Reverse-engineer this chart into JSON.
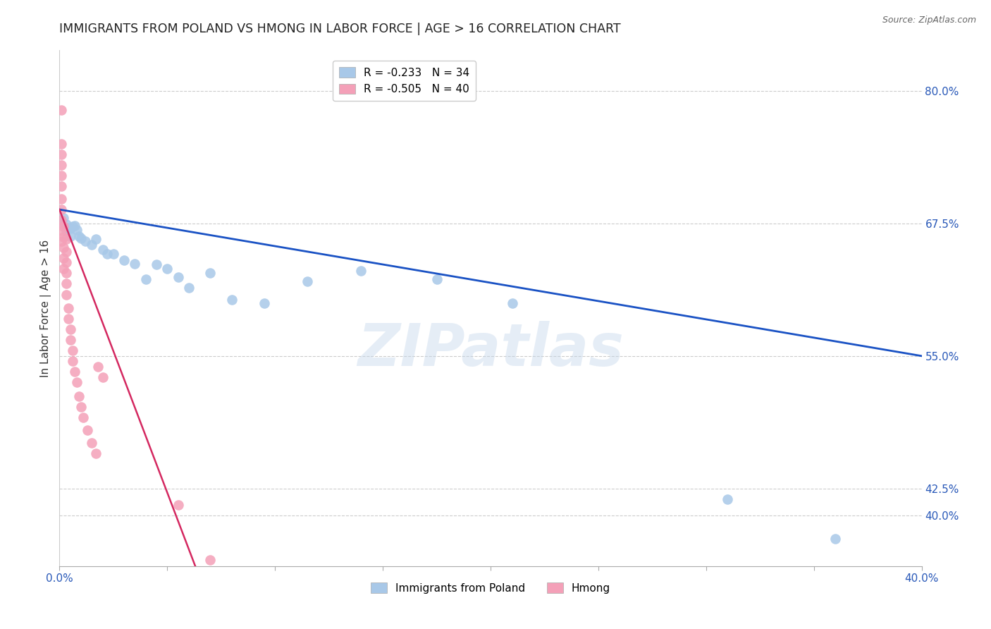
{
  "title": "IMMIGRANTS FROM POLAND VS HMONG IN LABOR FORCE | AGE > 16 CORRELATION CHART",
  "source": "Source: ZipAtlas.com",
  "ylabel": "In Labor Force | Age > 16",
  "legend_labels": [
    "Immigrants from Poland",
    "Hmong"
  ],
  "poland_R": -0.233,
  "poland_N": 34,
  "hmong_R": -0.505,
  "hmong_N": 40,
  "poland_color": "#a8c8e8",
  "hmong_color": "#f4a0b8",
  "poland_line_color": "#1a52c4",
  "hmong_line_color": "#d42860",
  "poland_scatter_x": [
    0.001,
    0.002,
    0.003,
    0.003,
    0.004,
    0.005,
    0.005,
    0.006,
    0.007,
    0.008,
    0.009,
    0.01,
    0.012,
    0.015,
    0.017,
    0.02,
    0.022,
    0.025,
    0.03,
    0.035,
    0.04,
    0.045,
    0.05,
    0.055,
    0.06,
    0.07,
    0.08,
    0.095,
    0.115,
    0.14,
    0.175,
    0.21,
    0.31,
    0.36
  ],
  "poland_scatter_y": [
    0.675,
    0.68,
    0.674,
    0.668,
    0.671,
    0.663,
    0.67,
    0.672,
    0.673,
    0.669,
    0.663,
    0.661,
    0.658,
    0.655,
    0.66,
    0.65,
    0.646,
    0.646,
    0.64,
    0.637,
    0.622,
    0.636,
    0.632,
    0.624,
    0.614,
    0.628,
    0.603,
    0.6,
    0.62,
    0.63,
    0.622,
    0.6,
    0.415,
    0.378
  ],
  "hmong_scatter_x": [
    0.001,
    0.001,
    0.001,
    0.001,
    0.001,
    0.001,
    0.001,
    0.001,
    0.001,
    0.001,
    0.001,
    0.002,
    0.002,
    0.002,
    0.002,
    0.002,
    0.003,
    0.003,
    0.003,
    0.003,
    0.003,
    0.003,
    0.004,
    0.004,
    0.005,
    0.005,
    0.006,
    0.006,
    0.007,
    0.008,
    0.009,
    0.01,
    0.011,
    0.013,
    0.015,
    0.017,
    0.018,
    0.02,
    0.055,
    0.07
  ],
  "hmong_scatter_y": [
    0.782,
    0.75,
    0.74,
    0.73,
    0.72,
    0.71,
    0.698,
    0.688,
    0.678,
    0.668,
    0.658,
    0.672,
    0.662,
    0.652,
    0.642,
    0.632,
    0.66,
    0.648,
    0.638,
    0.628,
    0.618,
    0.608,
    0.595,
    0.585,
    0.575,
    0.565,
    0.555,
    0.545,
    0.535,
    0.525,
    0.512,
    0.502,
    0.492,
    0.48,
    0.468,
    0.458,
    0.54,
    0.53,
    0.41,
    0.358
  ],
  "xlim": [
    0.0,
    0.4
  ],
  "ylim": [
    0.352,
    0.838
  ],
  "xtick_vals": [
    0.0,
    0.05,
    0.1,
    0.15,
    0.2,
    0.25,
    0.3,
    0.35,
    0.4
  ],
  "xtick_labels_show": [
    true,
    false,
    false,
    false,
    false,
    false,
    false,
    false,
    true
  ],
  "ytick_right_vals": [
    0.4,
    0.425,
    0.55,
    0.675,
    0.8
  ],
  "ytick_right_labels": [
    "40.0%",
    "42.5%",
    "55.0%",
    "67.5%",
    "80.0%"
  ],
  "poland_line_x0": 0.0,
  "poland_line_x1": 0.4,
  "poland_line_y0": 0.688,
  "poland_line_y1": 0.55,
  "hmong_line_x0": 0.0,
  "hmong_line_x1": 0.063,
  "hmong_line_y0": 0.688,
  "hmong_line_y1": 0.352,
  "watermark_text": "ZIPatlas",
  "background_color": "#ffffff",
  "grid_color": "#cccccc",
  "title_color": "#222222",
  "tick_color": "#2858b8",
  "source_color": "#666666",
  "title_fontsize": 12.5,
  "ylabel_fontsize": 11,
  "tick_fontsize": 11,
  "source_fontsize": 9,
  "legend_fontsize": 11
}
